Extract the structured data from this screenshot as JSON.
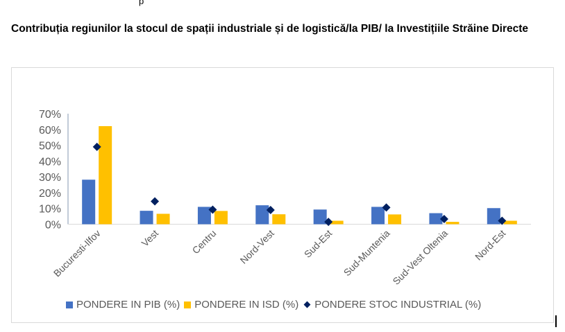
{
  "page": {
    "top_fragment": "p",
    "title": "Contribuția regiunilor la stocul de spații industriale și de logistică/la PIB/ la Investițiile Străine Directe"
  },
  "colors": {
    "pib": "#4472C4",
    "isd": "#FFC000",
    "stoc": "#002060",
    "axis": "#8497B0",
    "baseline": "#d9d9d9"
  },
  "chart_data": {
    "type": "bar",
    "title": "Contribuția regiunilor la stocul de spații industriale și de logistică/la PIB/ la Investițiile Străine Directe",
    "xlabel": "",
    "ylabel": "",
    "ylim": [
      0,
      70
    ],
    "yticks": [
      0,
      10,
      20,
      30,
      40,
      50,
      60,
      70
    ],
    "ytick_labels": [
      "0%",
      "10%",
      "20%",
      "30%",
      "40%",
      "50%",
      "60%",
      "70%"
    ],
    "grid": false,
    "legend_position": "bottom",
    "categories": [
      "Bucuresti-Ilfov",
      "Vest",
      "Centru",
      "Nord-Vest",
      "Sud-Est",
      "Sud-Muntenia",
      "Sud-Vest Oltenia",
      "Nord-Est"
    ],
    "series": [
      {
        "name": "PONDERE IN PIB (%)",
        "kind": "bar",
        "values": [
          28.2,
          8.5,
          11.0,
          12.0,
          9.3,
          11.0,
          7.0,
          10.2
        ]
      },
      {
        "name": "PONDERE IN ISD (%)",
        "kind": "bar",
        "values": [
          62.1,
          6.6,
          8.4,
          6.3,
          2.2,
          6.2,
          1.5,
          2.2
        ]
      },
      {
        "name": "PONDERE STOC INDUSTRIAL (%)",
        "kind": "marker-diamond",
        "values": [
          49.0,
          14.5,
          9.2,
          9.0,
          1.5,
          10.6,
          3.3,
          2.2
        ]
      }
    ]
  }
}
